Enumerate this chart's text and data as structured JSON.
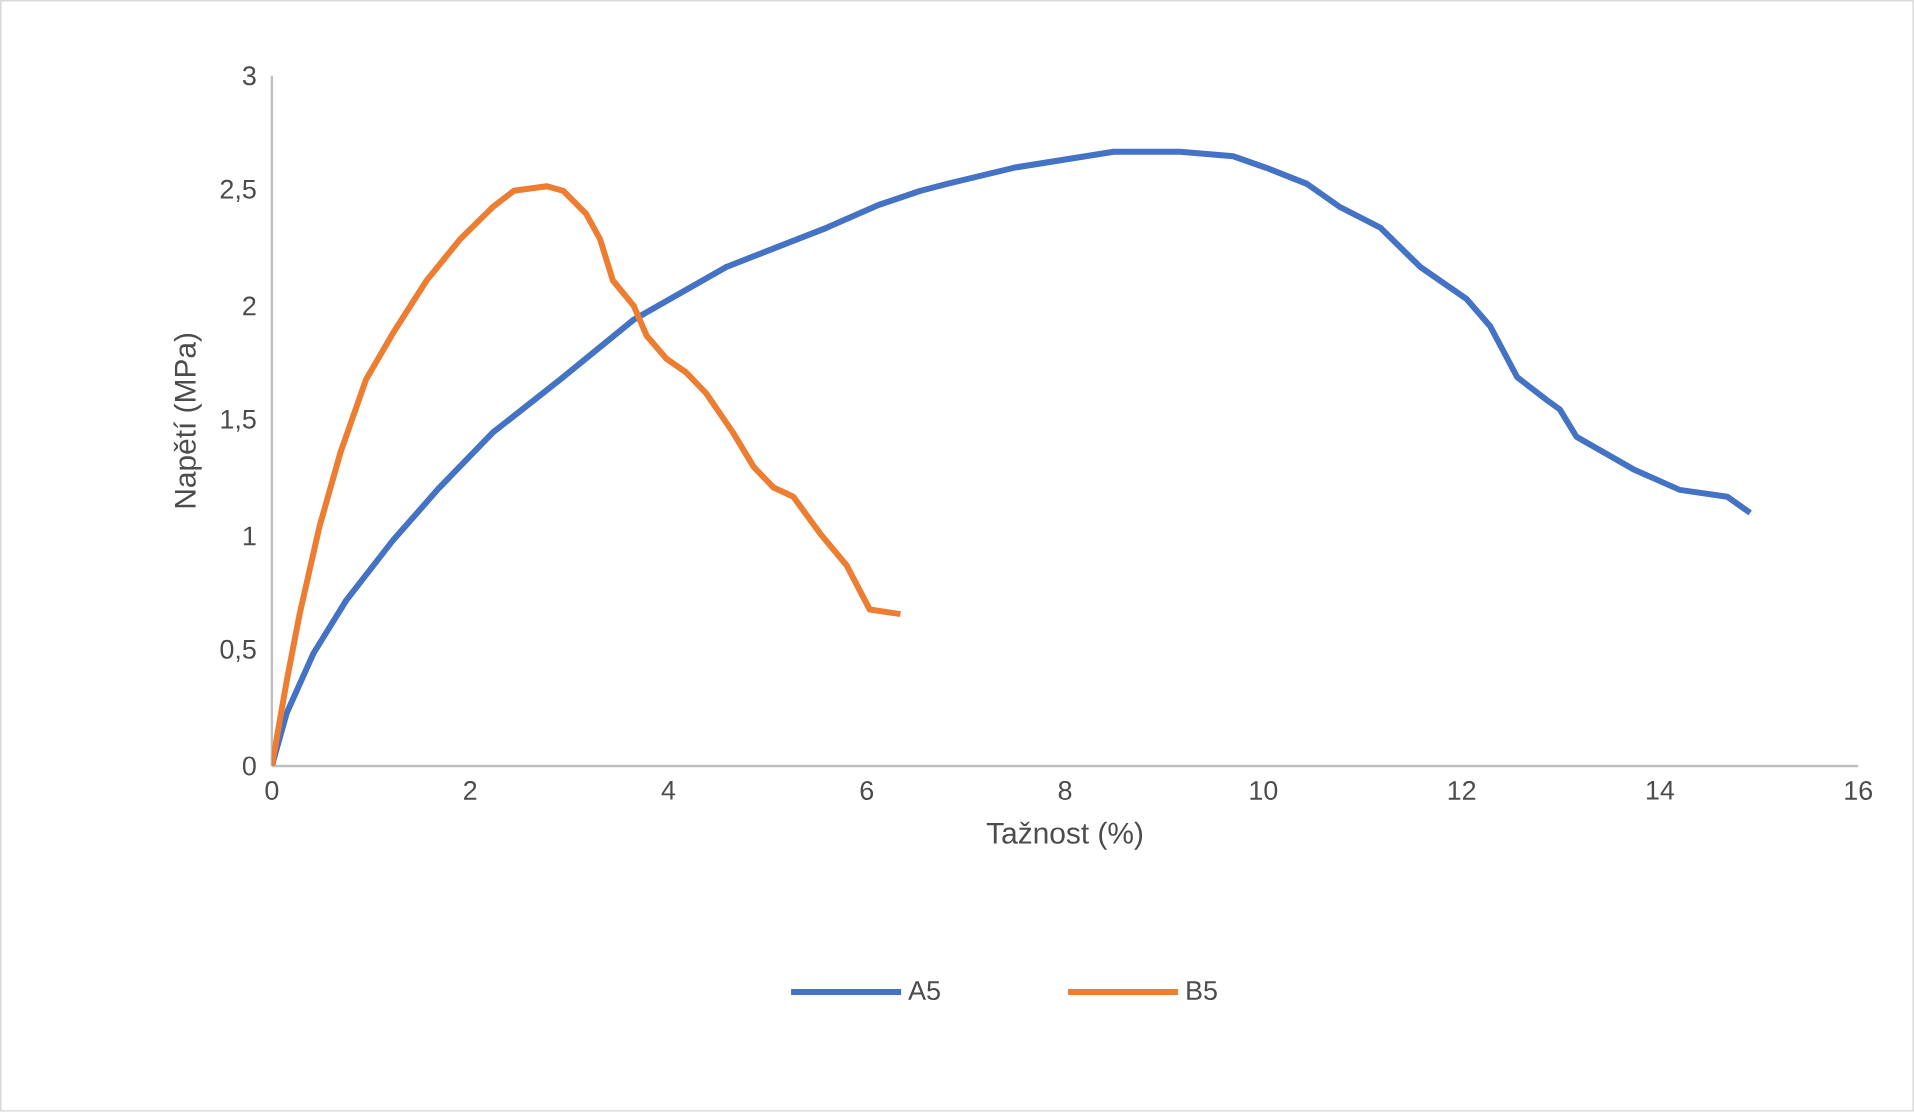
{
  "chart_data": {
    "type": "line",
    "xlabel": "Tažnost (%)",
    "ylabel": "Napětí (MPa)",
    "xlim": [
      0,
      16
    ],
    "ylim": [
      0,
      3
    ],
    "xticks": [
      0,
      2,
      4,
      6,
      8,
      10,
      12,
      14,
      16
    ],
    "yticks": [
      0,
      {
        "value": 0.5,
        "label": "0,5"
      },
      1,
      {
        "value": 1.5,
        "label": "1,5"
      },
      2,
      {
        "value": 2.5,
        "label": "2,5"
      },
      3
    ],
    "grid": false,
    "legend": "bottom",
    "marker": "none",
    "line_style": "solid",
    "series": [
      {
        "name": "A5",
        "color": "#4472c4",
        "x": [
          0,
          0.15,
          0.42,
          0.75,
          1.22,
          1.69,
          2.23,
          2.91,
          3.65,
          4.59,
          5.6,
          6.13,
          6.54,
          6.81,
          7.48,
          8.49,
          9.16,
          9.7,
          10.03,
          10.44,
          10.77,
          11.18,
          11.58,
          12.05,
          12.29,
          12.56,
          12.86,
          12.99,
          13.16,
          13.73,
          14.2,
          14.68,
          14.91
        ],
        "values": [
          0,
          0.23,
          0.49,
          0.72,
          0.98,
          1.21,
          1.45,
          1.68,
          1.94,
          2.17,
          2.34,
          2.44,
          2.5,
          2.53,
          2.6,
          2.67,
          2.67,
          2.65,
          2.6,
          2.53,
          2.43,
          2.34,
          2.17,
          2.03,
          1.91,
          1.69,
          1.59,
          1.55,
          1.43,
          1.29,
          1.2,
          1.17,
          1.1
        ]
      },
      {
        "name": "B5",
        "color": "#ed7d31",
        "x": [
          0,
          0.15,
          0.28,
          0.48,
          0.69,
          0.95,
          1.22,
          1.56,
          1.9,
          2.23,
          2.44,
          2.77,
          2.94,
          3.17,
          3.31,
          3.44,
          3.65,
          3.78,
          3.98,
          4.18,
          4.38,
          4.65,
          4.86,
          5.06,
          5.26,
          5.53,
          5.8,
          6.03,
          6.34
        ],
        "values": [
          0,
          0.37,
          0.66,
          1.04,
          1.36,
          1.68,
          1.88,
          2.11,
          2.29,
          2.43,
          2.5,
          2.52,
          2.5,
          2.4,
          2.29,
          2.11,
          2.0,
          1.87,
          1.77,
          1.71,
          1.62,
          1.45,
          1.3,
          1.21,
          1.17,
          1.01,
          0.87,
          0.68,
          0.66
        ]
      }
    ]
  }
}
